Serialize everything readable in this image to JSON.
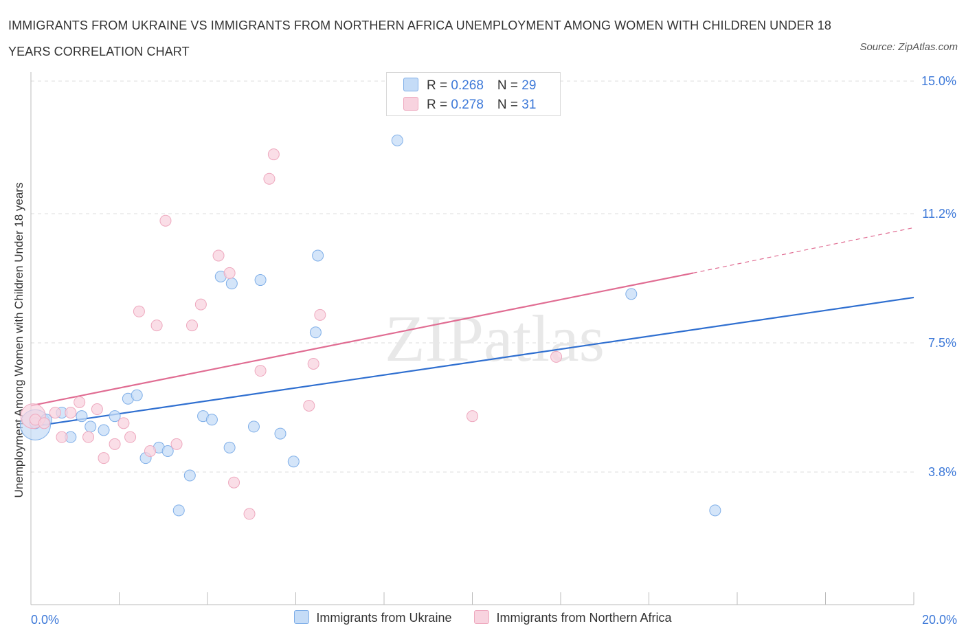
{
  "title": "IMMIGRANTS FROM UKRAINE VS IMMIGRANTS FROM NORTHERN AFRICA UNEMPLOYMENT AMONG WOMEN WITH CHILDREN UNDER 18 YEARS CORRELATION CHART",
  "source": "Source: ZipAtlas.com",
  "watermark": "ZIPatlas",
  "legend": {
    "rows": [
      {
        "r_label": "R = ",
        "r_value": "0.268",
        "n_label": "N = ",
        "n_value": "29"
      },
      {
        "r_label": "R = ",
        "r_value": "0.278",
        "n_label": "N = ",
        "n_value": "31"
      }
    ]
  },
  "chart_data": {
    "type": "scatter",
    "ylabel": "Unemployment Among Women with Children Under 18 years",
    "xlabel": "",
    "xlim": [
      0,
      20
    ],
    "ylim": [
      0,
      15
    ],
    "x_tick_labels": [
      "0.0%",
      "20.0%"
    ],
    "y_ticks": [
      3.8,
      7.5,
      11.2,
      15.0
    ],
    "y_tick_labels": [
      "3.8%",
      "7.5%",
      "11.2%",
      "15.0%"
    ],
    "grid": true,
    "legend_position": "top-center",
    "series": [
      {
        "name": "Immigrants from Ukraine",
        "color": "#7eaee8",
        "fill": "#c5dcf7",
        "line_color": "#2f6fd0",
        "trend": {
          "x0": 0,
          "y0": 5.1,
          "x1": 20,
          "y1": 8.8
        },
        "points": [
          [
            0.1,
            5.2
          ],
          [
            0.35,
            5.3
          ],
          [
            0.7,
            5.5
          ],
          [
            0.9,
            4.8
          ],
          [
            1.15,
            5.4
          ],
          [
            1.35,
            5.1
          ],
          [
            1.65,
            5.0
          ],
          [
            1.9,
            5.4
          ],
          [
            2.2,
            5.9
          ],
          [
            2.4,
            6.0
          ],
          [
            2.6,
            4.2
          ],
          [
            2.9,
            4.5
          ],
          [
            3.1,
            4.4
          ],
          [
            3.35,
            2.7
          ],
          [
            3.6,
            3.7
          ],
          [
            3.9,
            5.4
          ],
          [
            4.1,
            5.3
          ],
          [
            4.3,
            9.4
          ],
          [
            4.55,
            9.2
          ],
          [
            4.5,
            4.5
          ],
          [
            5.05,
            5.1
          ],
          [
            5.2,
            9.3
          ],
          [
            5.65,
            4.9
          ],
          [
            5.95,
            4.1
          ],
          [
            6.5,
            10.0
          ],
          [
            6.45,
            7.8
          ],
          [
            8.3,
            13.3
          ],
          [
            13.6,
            8.9
          ],
          [
            15.5,
            2.7
          ]
        ]
      },
      {
        "name": "Immigrants from Northern Africa",
        "color": "#eea8be",
        "fill": "#f8d3df",
        "line_color": "#e06c92",
        "trend": {
          "x0": 0,
          "y0": 5.7,
          "x1": 15,
          "y1": 9.5
        },
        "trend_dashed_to": {
          "x": 20,
          "y": 10.8
        },
        "points": [
          [
            0.1,
            5.3
          ],
          [
            0.3,
            5.2
          ],
          [
            0.55,
            5.5
          ],
          [
            0.7,
            4.8
          ],
          [
            0.9,
            5.5
          ],
          [
            1.1,
            5.8
          ],
          [
            1.3,
            4.8
          ],
          [
            1.5,
            5.6
          ],
          [
            1.65,
            4.2
          ],
          [
            1.9,
            4.6
          ],
          [
            2.1,
            5.2
          ],
          [
            2.25,
            4.8
          ],
          [
            2.45,
            8.4
          ],
          [
            2.7,
            4.4
          ],
          [
            2.85,
            8.0
          ],
          [
            3.05,
            11.0
          ],
          [
            3.3,
            4.6
          ],
          [
            3.65,
            8.0
          ],
          [
            3.85,
            8.6
          ],
          [
            4.25,
            10.0
          ],
          [
            4.5,
            9.5
          ],
          [
            4.6,
            3.5
          ],
          [
            4.95,
            2.6
          ],
          [
            5.2,
            6.7
          ],
          [
            5.4,
            12.2
          ],
          [
            5.5,
            12.9
          ],
          [
            6.3,
            5.7
          ],
          [
            6.4,
            6.9
          ],
          [
            6.55,
            8.3
          ],
          [
            10.0,
            5.4
          ],
          [
            11.9,
            7.1
          ]
        ]
      }
    ]
  }
}
